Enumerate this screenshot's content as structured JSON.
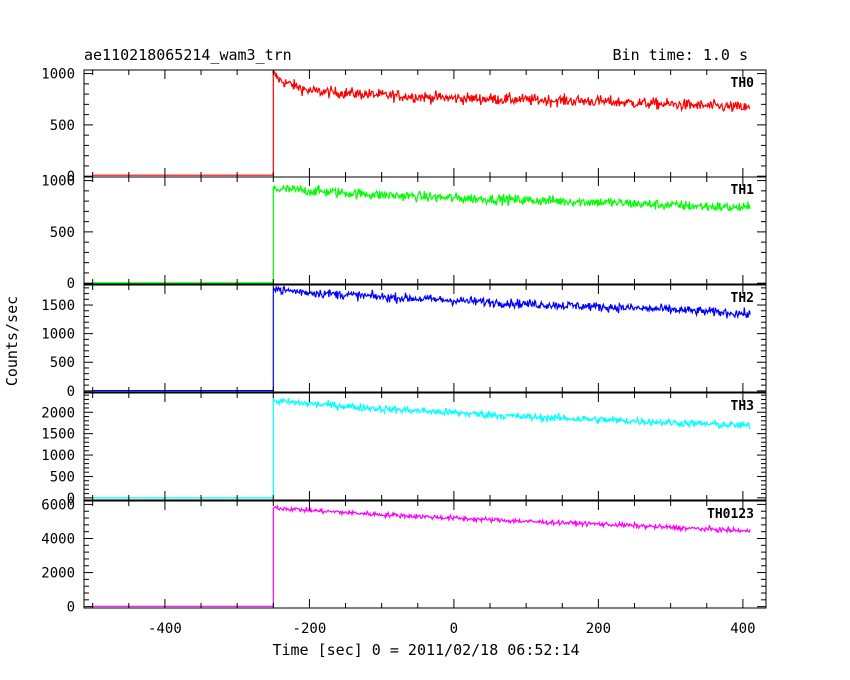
{
  "header": {
    "title": "ae110218065214_wam3_trn",
    "bin_time": "Bin time: 1.0 s"
  },
  "chart_data": {
    "type": "line",
    "title": "ae110218065214_wam3_trn",
    "xlabel": "Time [sec] 0 = 2011/02/18 06:52:14",
    "ylabel": "Counts/sec",
    "xlim": [
      -512,
      432
    ],
    "x_ticks": [
      -400,
      -200,
      0,
      200,
      400
    ],
    "x_data_range": [
      -500,
      410
    ],
    "onset_x": -250,
    "grid": false,
    "panels": [
      {
        "name": "TH0",
        "color": "#ff0000",
        "ylim": [
          -8,
          1035
        ],
        "y_ticks": [
          0,
          500,
          1000
        ],
        "y_tick_labels": [
          "0",
          "500",
          "1000"
        ],
        "pre_level": 10,
        "post": {
          "x": [
            -250,
            -240,
            -200,
            -100,
            0,
            100,
            200,
            300,
            400,
            410
          ],
          "y": [
            1000,
            930,
            830,
            790,
            760,
            745,
            730,
            700,
            670,
            660
          ]
        },
        "noise": 28
      },
      {
        "name": "TH1",
        "color": "#00ff00",
        "ylim": [
          -8,
          1035
        ],
        "y_ticks": [
          0,
          500,
          1000
        ],
        "y_tick_labels": [
          "0",
          "500",
          "1000"
        ],
        "pre_level": 3,
        "post": {
          "x": [
            -250,
            -200,
            -100,
            0,
            100,
            200,
            300,
            400,
            410
          ],
          "y": [
            920,
            900,
            860,
            830,
            810,
            790,
            760,
            735,
            730
          ]
        },
        "noise": 25
      },
      {
        "name": "TH2",
        "color": "#0000ff",
        "ylim": [
          -20,
          1850
        ],
        "y_ticks": [
          0,
          500,
          1000,
          1500
        ],
        "y_tick_labels": [
          "0",
          "500",
          "1000",
          "1500"
        ],
        "pre_level": 5,
        "post": {
          "x": [
            -250,
            -240,
            -200,
            -100,
            0,
            100,
            200,
            300,
            400,
            410
          ],
          "y": [
            1830,
            1760,
            1720,
            1640,
            1580,
            1520,
            1470,
            1420,
            1350,
            1330
          ]
        },
        "noise": 40
      },
      {
        "name": "TH3",
        "color": "#00ffff",
        "ylim": [
          -50,
          2450
        ],
        "y_ticks": [
          0,
          500,
          1000,
          1500,
          2000
        ],
        "y_tick_labels": [
          "0",
          "500",
          "1000",
          "1500",
          "2000"
        ],
        "pre_level": 0,
        "post": {
          "x": [
            -250,
            -240,
            -200,
            -100,
            0,
            100,
            200,
            300,
            400,
            410
          ],
          "y": [
            2280,
            2250,
            2200,
            2080,
            1990,
            1890,
            1830,
            1760,
            1690,
            1680
          ]
        },
        "noise": 45
      },
      {
        "name": "TH0123",
        "color": "#ff00ff",
        "ylim": [
          -80,
          6200
        ],
        "y_ticks": [
          0,
          2000,
          4000,
          6000
        ],
        "y_tick_labels": [
          "0",
          "2000",
          "4000",
          "6000"
        ],
        "pre_level": 20,
        "post": {
          "x": [
            -250,
            -240,
            -200,
            -100,
            0,
            100,
            200,
            300,
            400,
            410
          ],
          "y": [
            5850,
            5780,
            5650,
            5400,
            5200,
            5000,
            4850,
            4650,
            4450,
            4400
          ]
        },
        "noise": 70
      }
    ]
  }
}
